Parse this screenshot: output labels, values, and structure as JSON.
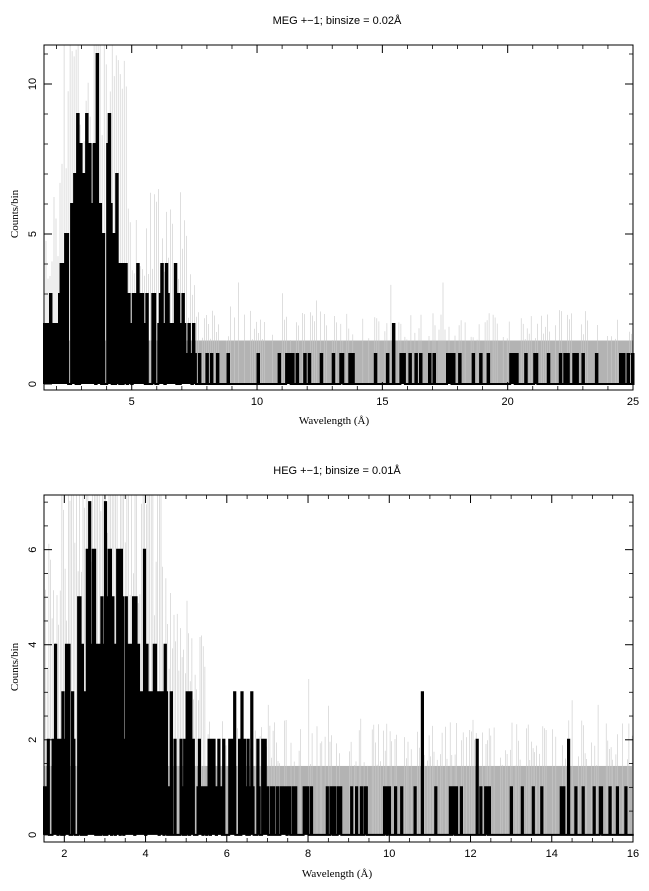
{
  "chart_data": [
    {
      "type": "line",
      "title": "MEG +−1; binsize = 0.02Å",
      "xlabel": "Wavelength (Å)",
      "ylabel": "Counts/bin",
      "xlim": [
        1.5,
        25
      ],
      "ylim": [
        -0.2,
        11.3
      ],
      "x_ticks": [
        5,
        10,
        15,
        20,
        25
      ],
      "y_ticks": [
        0,
        5,
        10
      ],
      "binsize": 0.02,
      "colors": {
        "counts": "#000000",
        "error_band": "#b3b3b3",
        "error_lines": "#c8c8c8"
      },
      "series": [],
      "counts_peaks": [
        [
          1.75,
          3
        ],
        [
          2.0,
          2
        ],
        [
          2.25,
          4
        ],
        [
          2.4,
          5
        ],
        [
          2.6,
          6
        ],
        [
          2.8,
          9
        ],
        [
          2.95,
          8
        ],
        [
          3.05,
          7
        ],
        [
          3.2,
          9
        ],
        [
          3.35,
          6
        ],
        [
          3.5,
          8
        ],
        [
          3.6,
          11
        ],
        [
          3.75,
          6
        ],
        [
          3.85,
          5
        ],
        [
          4.0,
          8
        ],
        [
          4.1,
          9
        ],
        [
          4.25,
          5
        ],
        [
          4.4,
          7
        ],
        [
          4.55,
          4
        ],
        [
          4.7,
          4
        ],
        [
          4.85,
          3
        ],
        [
          5.1,
          3
        ],
        [
          5.2,
          4
        ],
        [
          5.4,
          3
        ],
        [
          5.6,
          3
        ],
        [
          5.85,
          3
        ],
        [
          6.05,
          2
        ],
        [
          6.2,
          4
        ],
        [
          6.45,
          2
        ],
        [
          6.7,
          4
        ],
        [
          6.95,
          2
        ],
        [
          7.2,
          1
        ],
        [
          7.45,
          2
        ],
        [
          15.4,
          2
        ]
      ],
      "error_band": {
        "x": [
          1.5,
          25
        ],
        "low": 0.0,
        "high": 1.45
      }
    },
    {
      "type": "line",
      "title": "HEG +−1; binsize = 0.01Å",
      "xlabel": "Wavelength (Å)",
      "ylabel": "Counts/bin",
      "xlim": [
        1.5,
        16
      ],
      "ylim": [
        -0.15,
        7.15
      ],
      "x_ticks": [
        2,
        4,
        6,
        8,
        10,
        12,
        14,
        16
      ],
      "y_ticks": [
        0,
        2,
        4,
        6
      ],
      "binsize": 0.01,
      "colors": {
        "counts": "#000000",
        "error_band": "#b3b3b3",
        "error_lines": "#c8c8c8"
      },
      "series": [],
      "counts_peaks": [
        [
          1.6,
          2
        ],
        [
          1.75,
          1
        ],
        [
          1.85,
          2
        ],
        [
          1.95,
          3
        ],
        [
          2.05,
          4
        ],
        [
          2.2,
          3
        ],
        [
          2.35,
          5
        ],
        [
          2.5,
          3
        ],
        [
          2.6,
          7
        ],
        [
          2.7,
          6
        ],
        [
          2.8,
          4
        ],
        [
          2.9,
          5
        ],
        [
          3.0,
          7
        ],
        [
          3.1,
          6
        ],
        [
          3.2,
          4
        ],
        [
          3.3,
          6
        ],
        [
          3.4,
          6
        ],
        [
          3.5,
          5
        ],
        [
          3.6,
          4
        ],
        [
          3.7,
          5
        ],
        [
          3.85,
          3
        ],
        [
          3.95,
          6
        ],
        [
          4.05,
          2
        ],
        [
          4.2,
          4
        ],
        [
          4.35,
          3
        ],
        [
          4.5,
          3
        ],
        [
          4.7,
          2
        ],
        [
          4.85,
          2
        ],
        [
          5.0,
          3
        ],
        [
          5.1,
          3
        ],
        [
          5.3,
          2
        ],
        [
          5.6,
          2
        ],
        [
          5.8,
          2
        ],
        [
          6.1,
          1
        ],
        [
          6.35,
          3
        ],
        [
          6.5,
          2
        ],
        [
          6.75,
          2
        ],
        [
          7.0,
          1
        ],
        [
          7.4,
          1
        ],
        [
          10.8,
          3
        ],
        [
          12.15,
          2
        ],
        [
          14.4,
          2
        ],
        [
          15.2,
          1
        ]
      ],
      "error_band": {
        "x": [
          1.5,
          16
        ],
        "low": 0.0,
        "high": 1.45
      }
    }
  ]
}
